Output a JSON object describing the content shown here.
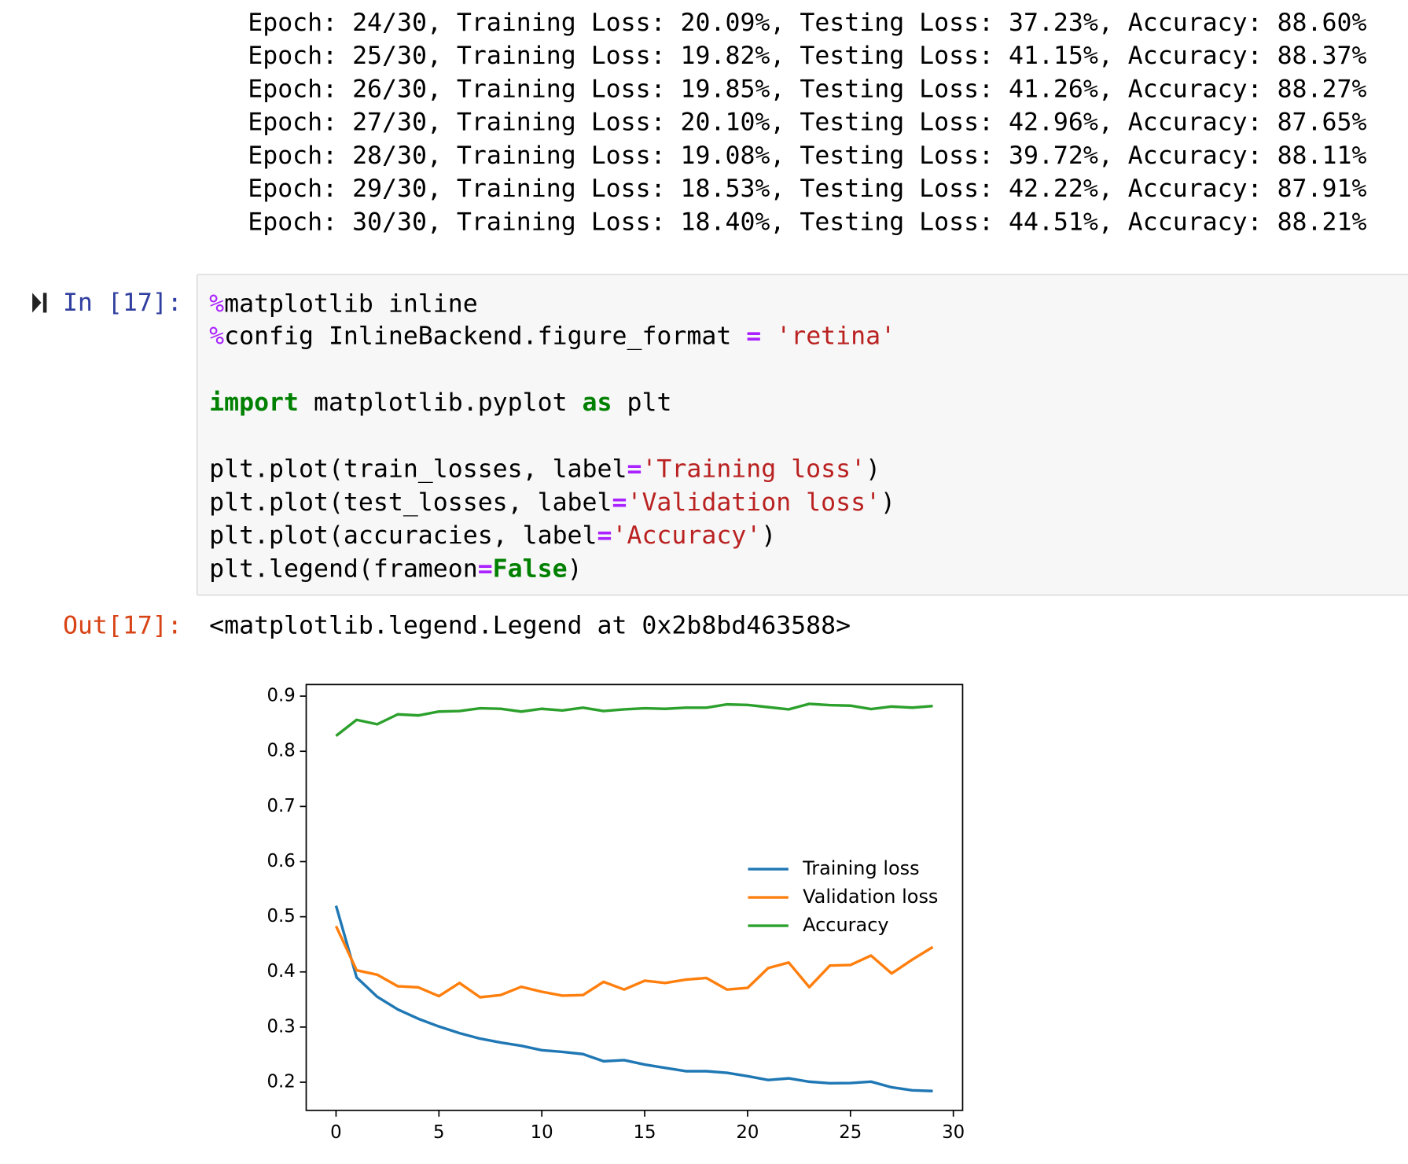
{
  "output_lines": [
    "Epoch: 24/30, Training Loss: 20.09%, Testing Loss: 37.23%, Accuracy: 88.60%",
    "Epoch: 25/30, Training Loss: 19.82%, Testing Loss: 41.15%, Accuracy: 88.37%",
    "Epoch: 26/30, Training Loss: 19.85%, Testing Loss: 41.26%, Accuracy: 88.27%",
    "Epoch: 27/30, Training Loss: 20.10%, Testing Loss: 42.96%, Accuracy: 87.65%",
    "Epoch: 28/30, Training Loss: 19.08%, Testing Loss: 39.72%, Accuracy: 88.11%",
    "Epoch: 29/30, Training Loss: 18.53%, Testing Loss: 42.22%, Accuracy: 87.91%",
    "Epoch: 30/30, Training Loss: 18.40%, Testing Loss: 44.51%, Accuracy: 88.21%"
  ],
  "input_cell": {
    "prompt": "In [17]:",
    "lines": [
      [
        {
          "text": "%",
          "color": "#aa22ff"
        },
        {
          "text": "matplotlib inline"
        }
      ],
      [
        {
          "text": "%",
          "color": "#aa22ff"
        },
        {
          "text": "config InlineBackend.figure_format "
        },
        {
          "text": "=",
          "color": "#aa22ff",
          "bold": true
        },
        {
          "text": " "
        },
        {
          "text": "'retina'",
          "color": "#ba2121"
        }
      ],
      [],
      [
        {
          "text": "import",
          "color": "#008000",
          "bold": true
        },
        {
          "text": " matplotlib.pyplot "
        },
        {
          "text": "as",
          "color": "#008000",
          "bold": true
        },
        {
          "text": " plt"
        }
      ],
      [],
      [
        {
          "text": "plt.plot(train_losses, label"
        },
        {
          "text": "=",
          "color": "#aa22ff",
          "bold": true
        },
        {
          "text": "'Training loss'",
          "color": "#ba2121"
        },
        {
          "text": ")"
        }
      ],
      [
        {
          "text": "plt.plot(test_losses, label"
        },
        {
          "text": "=",
          "color": "#aa22ff",
          "bold": true
        },
        {
          "text": "'Validation loss'",
          "color": "#ba2121"
        },
        {
          "text": ")"
        }
      ],
      [
        {
          "text": "plt.plot(accuracies, label"
        },
        {
          "text": "=",
          "color": "#aa22ff",
          "bold": true
        },
        {
          "text": "'Accuracy'",
          "color": "#ba2121"
        },
        {
          "text": ")"
        }
      ],
      [
        {
          "text": "plt.legend(frameon"
        },
        {
          "text": "=",
          "color": "#aa22ff",
          "bold": true
        },
        {
          "text": "False",
          "color": "#008000",
          "bold": true
        },
        {
          "text": ")"
        }
      ]
    ]
  },
  "output_cell": {
    "prompt": "Out[17]:",
    "text": "<matplotlib.legend.Legend at 0x2b8bd463588>"
  },
  "chart_data": {
    "type": "line",
    "x": [
      0,
      1,
      2,
      3,
      4,
      5,
      6,
      7,
      8,
      9,
      10,
      11,
      12,
      13,
      14,
      15,
      16,
      17,
      18,
      19,
      20,
      21,
      22,
      23,
      24,
      25,
      26,
      27,
      28,
      29
    ],
    "series": [
      {
        "name": "Training loss",
        "color": "#1f77b4",
        "values": [
          0.52,
          0.39,
          0.355,
          0.332,
          0.315,
          0.301,
          0.289,
          0.279,
          0.272,
          0.266,
          0.258,
          0.255,
          0.251,
          0.238,
          0.24,
          0.232,
          0.226,
          0.22,
          0.22,
          0.217,
          0.211,
          0.204,
          0.207,
          0.2009,
          0.1982,
          0.1985,
          0.201,
          0.1908,
          0.1853,
          0.184
        ]
      },
      {
        "name": "Validation loss",
        "color": "#ff7f0e",
        "values": [
          0.483,
          0.403,
          0.395,
          0.374,
          0.372,
          0.356,
          0.38,
          0.354,
          0.358,
          0.373,
          0.364,
          0.357,
          0.358,
          0.382,
          0.368,
          0.384,
          0.38,
          0.386,
          0.389,
          0.368,
          0.371,
          0.407,
          0.417,
          0.3723,
          0.4115,
          0.4126,
          0.4296,
          0.3972,
          0.4222,
          0.4451
        ]
      },
      {
        "name": "Accuracy",
        "color": "#2ca02c",
        "values": [
          0.828,
          0.857,
          0.849,
          0.867,
          0.865,
          0.872,
          0.873,
          0.878,
          0.877,
          0.872,
          0.877,
          0.874,
          0.879,
          0.873,
          0.876,
          0.878,
          0.877,
          0.879,
          0.879,
          0.885,
          0.884,
          0.88,
          0.876,
          0.886,
          0.8837,
          0.8827,
          0.8765,
          0.8811,
          0.8791,
          0.8821
        ]
      }
    ],
    "xlim": [
      -1.45,
      30.45
    ],
    "ylim": [
      0.149,
      0.921
    ],
    "xticks": [
      0,
      5,
      10,
      15,
      20,
      25,
      30
    ],
    "yticks": [
      0.2,
      0.3,
      0.4,
      0.5,
      0.6,
      0.7,
      0.8,
      0.9
    ],
    "grid": false,
    "legend": "center right"
  }
}
